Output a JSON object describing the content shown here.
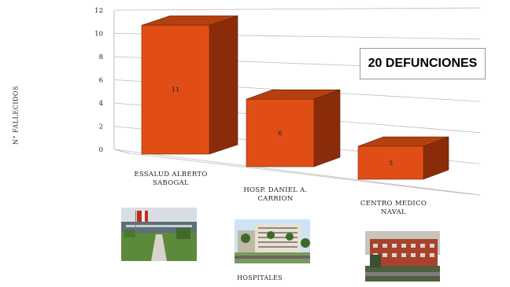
{
  "chart_data": {
    "type": "bar",
    "categories": [
      [
        "ESSALUD ALBERTO",
        "SABOGAL"
      ],
      [
        "HOSP. DANIEL A.",
        "CARRION"
      ],
      [
        "CENTRO MEDICO",
        "NAVAL"
      ]
    ],
    "values": [
      11,
      6,
      3
    ],
    "data_labels": [
      "11",
      "6",
      "3"
    ],
    "ylabel": "N° FALLECIDOS",
    "xlabel": "HOSPITALES",
    "ylim": [
      0,
      12
    ],
    "yticks": [
      "0",
      "2",
      "4",
      "6",
      "8",
      "10",
      "12"
    ],
    "grid": true,
    "style": "3d",
    "colors": {
      "front": "#e04e16",
      "side": "#8a2c0a",
      "top": "#b5400f"
    },
    "annotation": "20 DEFUNCIONES"
  },
  "photos": [
    {
      "name": "essalud-photo",
      "label_index": 0
    },
    {
      "name": "carrion-photo",
      "label_index": 1
    },
    {
      "name": "naval-photo",
      "label_index": 2
    }
  ]
}
